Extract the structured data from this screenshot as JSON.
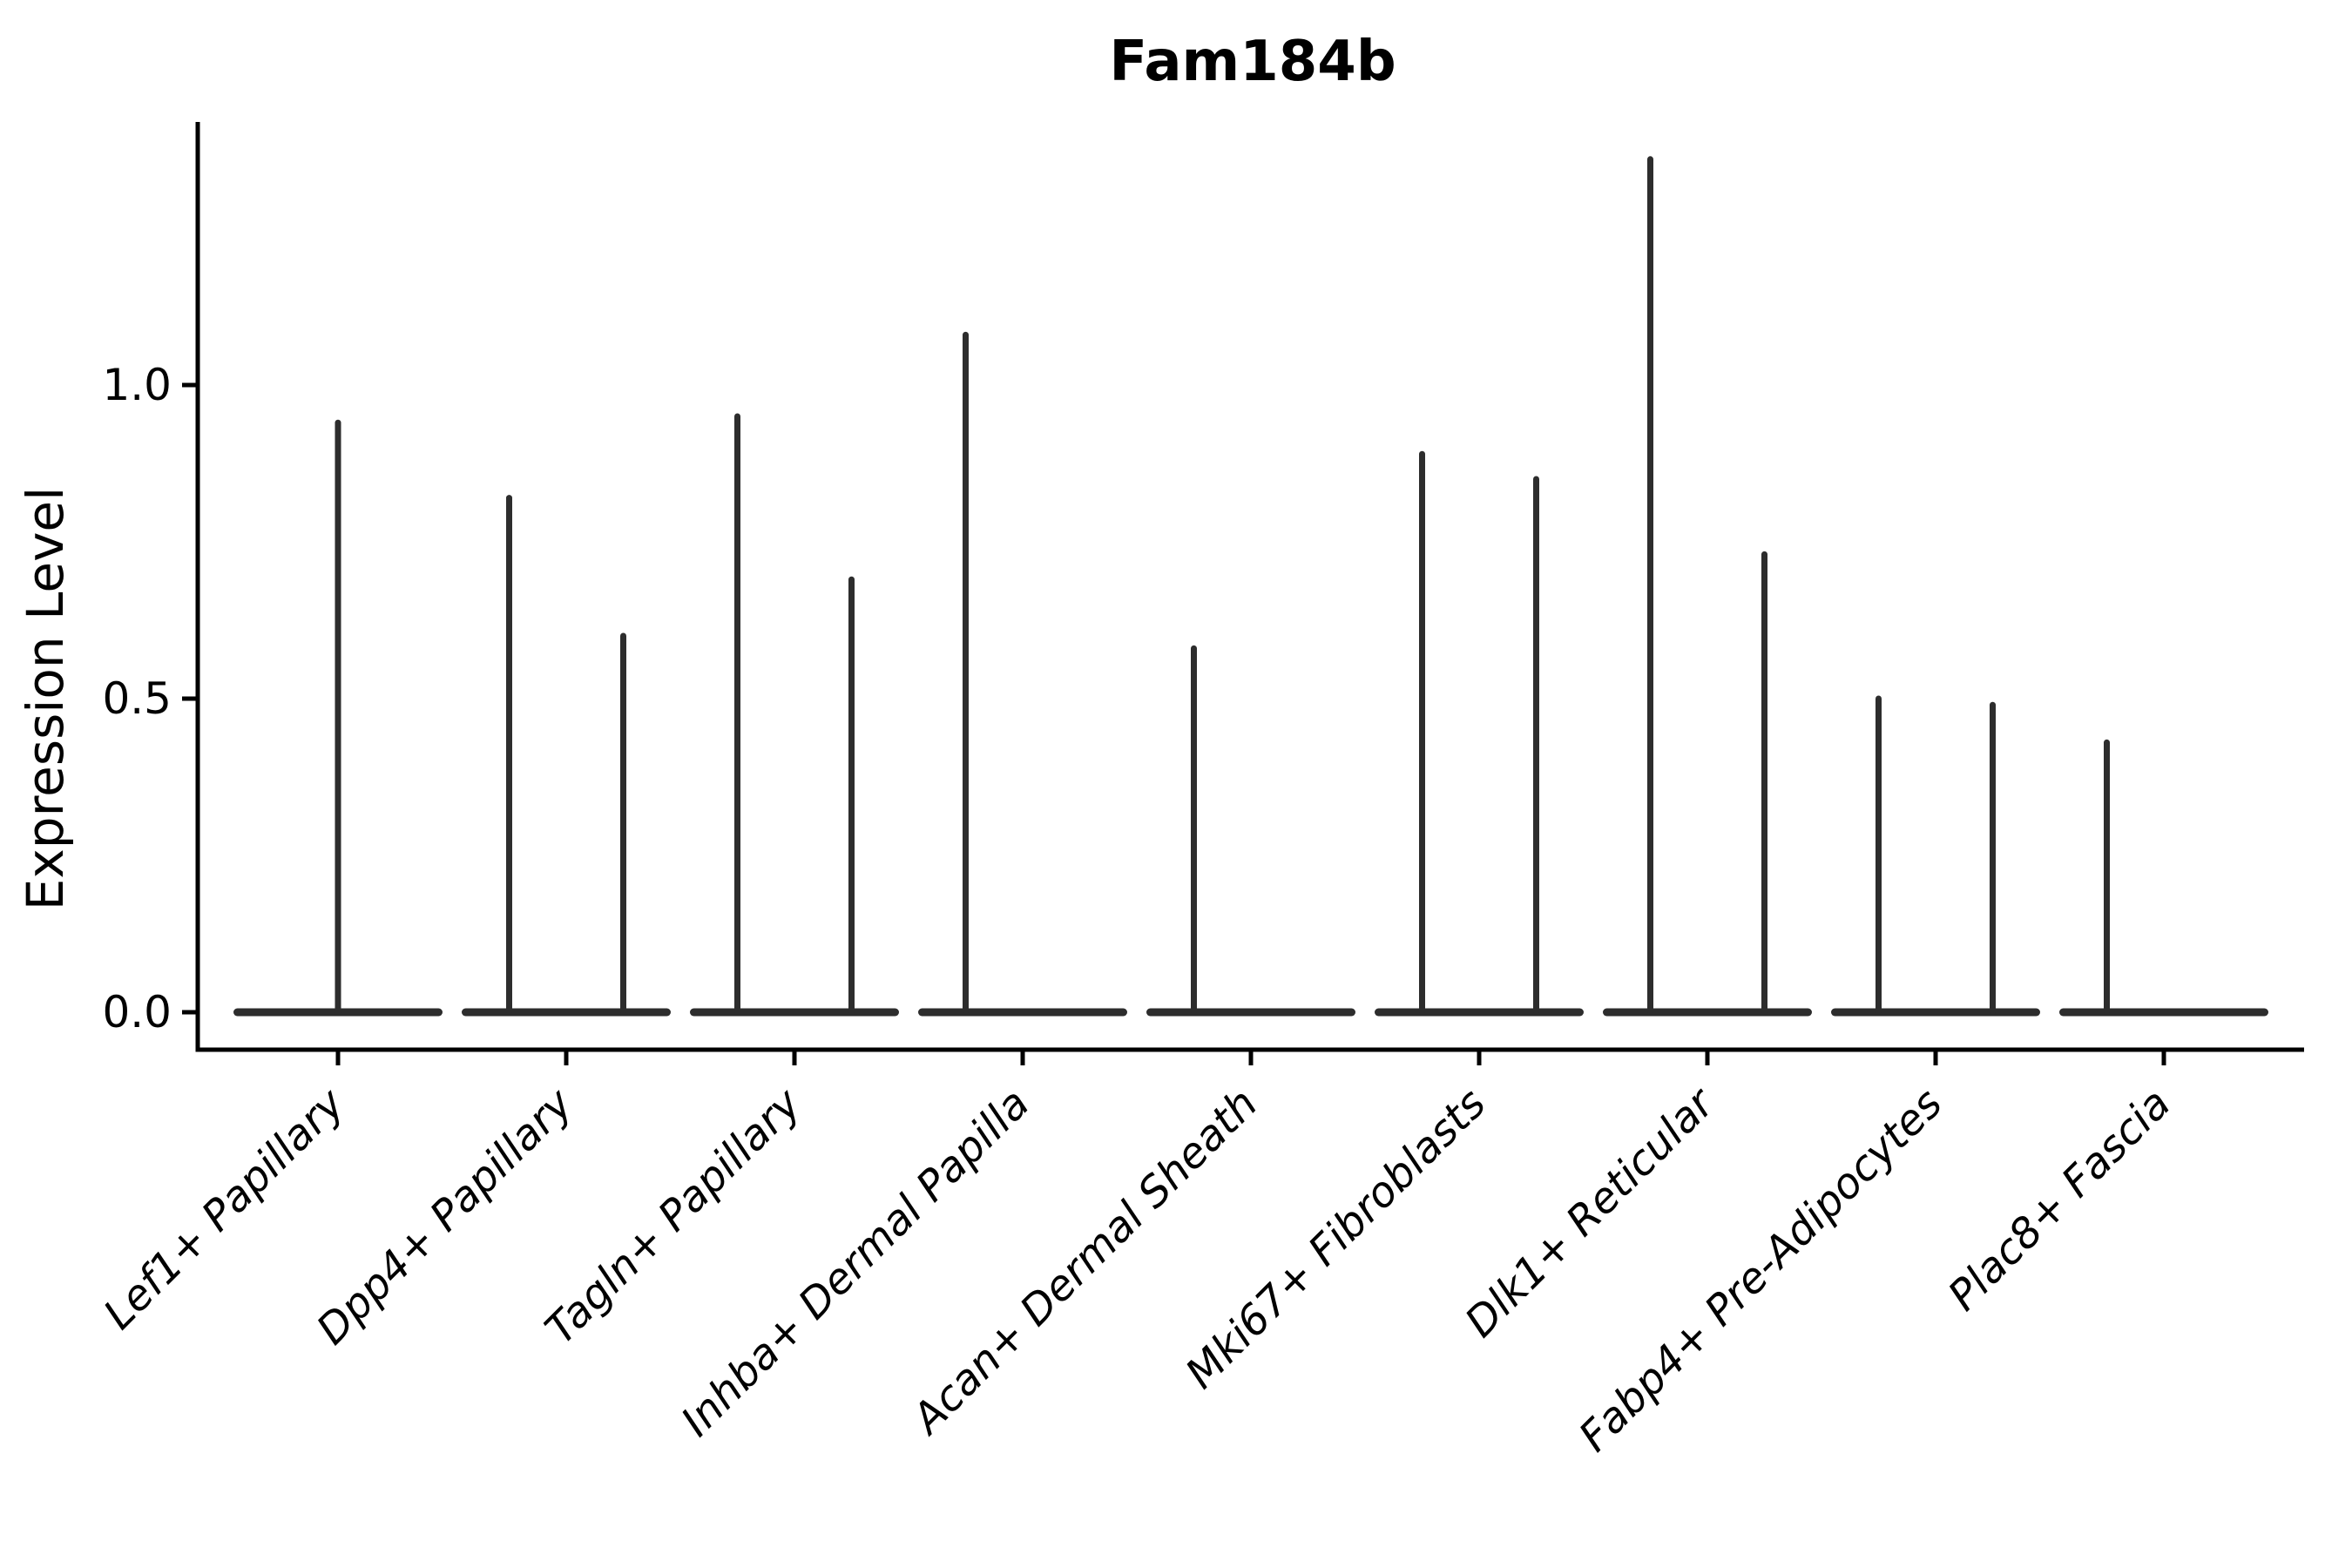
{
  "page": {
    "background": "#ffffff"
  },
  "chart_data": {
    "type": "violin",
    "title": "Fam184b",
    "ylabel": "Expression Level",
    "xlabel": "",
    "grid": false,
    "legend": "none",
    "violin_color": "#2d2d2d",
    "axis_color": "#000000",
    "ylim": [
      -0.06,
      1.42
    ],
    "yticks": {
      "values": [
        0.0,
        0.5,
        1.0
      ],
      "labels": [
        "0.0",
        "0.5",
        "1.0"
      ]
    },
    "categories": [
      {
        "label": "Lef1+ Papillary",
        "violins": [
          {
            "position": "center",
            "max_expression": 0.94
          }
        ]
      },
      {
        "label": "Dpp4+ Papillary",
        "violins": [
          {
            "position": "left",
            "max_expression": 0.82
          },
          {
            "position": "right",
            "max_expression": 0.6
          }
        ]
      },
      {
        "label": "Tagln+ Papillary",
        "violins": [
          {
            "position": "left",
            "max_expression": 0.95
          },
          {
            "position": "right",
            "max_expression": 0.69
          }
        ]
      },
      {
        "label": "Inhba+ Dermal Papilla",
        "violins": [
          {
            "position": "left",
            "max_expression": 1.08
          },
          {
            "position": "right",
            "max_expression": 0.0
          }
        ]
      },
      {
        "label": "Acan+ Dermal Sheath",
        "violins": [
          {
            "position": "left",
            "max_expression": 0.58
          },
          {
            "position": "right",
            "max_expression": 0.0
          }
        ]
      },
      {
        "label": "Mki67+ Fibroblasts",
        "violins": [
          {
            "position": "left",
            "max_expression": 0.89
          },
          {
            "position": "right",
            "max_expression": 0.85
          }
        ]
      },
      {
        "label": "Dlk1+ Reticular",
        "violins": [
          {
            "position": "left",
            "max_expression": 1.36
          },
          {
            "position": "right",
            "max_expression": 0.73
          }
        ]
      },
      {
        "label": "Fabp4+ Pre-Adipocytes",
        "violins": [
          {
            "position": "left",
            "max_expression": 0.5
          },
          {
            "position": "right",
            "max_expression": 0.49
          }
        ]
      },
      {
        "label": "Plac8+ Fascia",
        "violins": [
          {
            "position": "left",
            "max_expression": 0.43
          },
          {
            "position": "right",
            "max_expression": 0.0
          }
        ]
      }
    ]
  }
}
